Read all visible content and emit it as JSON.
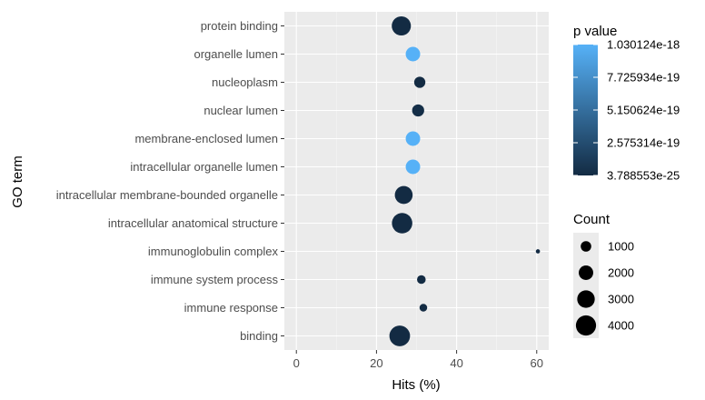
{
  "chart_data": {
    "type": "scatter",
    "xlabel": "Hits (%)",
    "ylabel": "GO term",
    "xlim": [
      -3,
      63
    ],
    "x_ticks": [
      "0",
      "20",
      "40",
      "60"
    ],
    "grid": true,
    "categories": [
      "binding",
      "immune response",
      "immune system process",
      "immunoglobulin complex",
      "intracellular anatomical structure",
      "intracellular membrane-bounded organelle",
      "intracellular organelle lumen",
      "membrane-enclosed lumen",
      "nuclear lumen",
      "nucleoplasm",
      "organelle lumen",
      "protein binding"
    ],
    "points": [
      {
        "term": "binding",
        "hits": 25.8,
        "count": 4200,
        "p_value": 0.0
      },
      {
        "term": "immune response",
        "hits": 31.7,
        "count": 480,
        "p_value": 0.0
      },
      {
        "term": "immune system process",
        "hits": 31.2,
        "count": 640,
        "p_value": 0.0
      },
      {
        "term": "immunoglobulin complex",
        "hits": 60.3,
        "count": 60,
        "p_value": 0.0
      },
      {
        "term": "intracellular anatomical structure",
        "hits": 26.4,
        "count": 4100,
        "p_value": 0.0
      },
      {
        "term": "intracellular membrane-bounded organelle",
        "hits": 26.8,
        "count": 3100,
        "p_value": 0.0
      },
      {
        "term": "intracellular organelle lumen",
        "hits": 29.1,
        "count": 2000,
        "p_value": 1.03e-18
      },
      {
        "term": "membrane-enclosed lumen",
        "hits": 29.1,
        "count": 2000,
        "p_value": 1.03e-18
      },
      {
        "term": "nuclear lumen",
        "hits": 30.4,
        "count": 1350,
        "p_value": 2.3e-20
      },
      {
        "term": "nucleoplasm",
        "hits": 30.8,
        "count": 1150,
        "p_value": 1e-21
      },
      {
        "term": "organelle lumen",
        "hits": 29.1,
        "count": 2000,
        "p_value": 1.03e-18
      },
      {
        "term": "protein binding",
        "hits": 26.2,
        "count": 3600,
        "p_value": 0.0
      }
    ],
    "color_legend": {
      "title": "p value",
      "labels": [
        "1.030124e-18",
        "7.725934e-19",
        "5.150624e-19",
        "2.575314e-19",
        "3.788553e-25"
      ],
      "low_color": "#132B43",
      "high_color": "#56B1F7"
    },
    "size_legend": {
      "title": "Count",
      "labels": [
        "1000",
        "2000",
        "3000",
        "4000"
      ],
      "values": [
        1000,
        2000,
        3000,
        4000
      ]
    }
  }
}
